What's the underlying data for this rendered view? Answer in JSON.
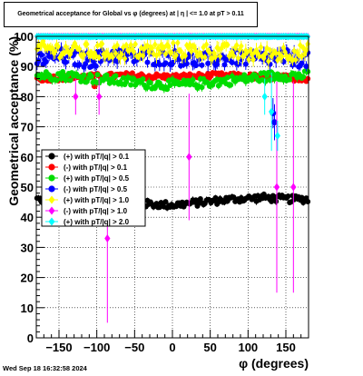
{
  "title": "Geometrical acceptance for Global vs φ (degrees) at | η | <= 1.0 at pT > 0.11",
  "footer": "Wed Sep 18 16:32:58 2024",
  "chart_data": {
    "type": "scatter",
    "xlabel": "φ (degrees)",
    "ylabel": "Geometrical acceptance (%)",
    "xlim": [
      -180,
      180
    ],
    "ylim": [
      0,
      100
    ],
    "x_ticks": [
      -150,
      -100,
      -50,
      0,
      50,
      100,
      150
    ],
    "y_ticks": [
      0,
      10,
      20,
      30,
      40,
      50,
      60,
      70,
      80,
      90,
      100
    ],
    "grid": true,
    "legend_position": "left-center",
    "series": [
      {
        "name": "(+) with pT/|q| > 0.1",
        "color": "#000000",
        "marker": "circle",
        "band": {
          "base": [
            [
              -180,
              46
            ],
            [
              -150,
              45
            ],
            [
              -120,
              44.5
            ],
            [
              -80,
              45
            ],
            [
              -40,
              44.5
            ],
            [
              0,
              44
            ],
            [
              40,
              45
            ],
            [
              80,
              46
            ],
            [
              120,
              46.5
            ],
            [
              150,
              46
            ],
            [
              180,
              46
            ]
          ],
          "spread": 1.2
        },
        "outliers": []
      },
      {
        "name": "(-) with pT/|q| > 0.1",
        "color": "#ff0000",
        "marker": "circle",
        "band": {
          "base": [
            [
              -180,
              86
            ],
            [
              -120,
              86.5
            ],
            [
              -60,
              87
            ],
            [
              0,
              86.5
            ],
            [
              60,
              87
            ],
            [
              120,
              86.5
            ],
            [
              180,
              86
            ]
          ],
          "spread": 1.0
        },
        "outliers": [
          {
            "x": -103,
            "y": 83.5,
            "err": 1
          }
        ]
      },
      {
        "name": "(+) with pT/|q| > 0.5",
        "color": "#00dd00",
        "marker": "circle",
        "band": {
          "base": [
            [
              -180,
              87
            ],
            [
              -140,
              87
            ],
            [
              -100,
              86
            ],
            [
              -60,
              85
            ],
            [
              -20,
              84
            ],
            [
              20,
              84
            ],
            [
              60,
              85
            ],
            [
              100,
              86
            ],
            [
              140,
              87
            ],
            [
              180,
              87
            ]
          ],
          "spread": 1.6
        },
        "outliers": []
      },
      {
        "name": "(-) with pT/|q| > 0.5",
        "color": "#0000ff",
        "marker": "circle",
        "band": {
          "base": [
            [
              -180,
              92
            ],
            [
              -150,
              93.5
            ],
            [
              -110,
              92
            ],
            [
              -80,
              94
            ],
            [
              -40,
              93
            ],
            [
              0,
              93
            ],
            [
              40,
              92
            ],
            [
              80,
              93
            ],
            [
              120,
              92.5
            ],
            [
              150,
              93
            ],
            [
              180,
              92
            ]
          ],
          "spread": 2.6
        },
        "outliers": [
          {
            "x": 135,
            "y": 71.5,
            "err": 6
          },
          {
            "x": 133,
            "y": 74.5,
            "err": 5
          }
        ]
      },
      {
        "name": "(+) with pT/|q| > 1.0",
        "color": "#ffff00",
        "marker": "diamond",
        "band": {
          "base": [
            [
              -180,
              96
            ],
            [
              -120,
              95
            ],
            [
              -60,
              95
            ],
            [
              0,
              95.5
            ],
            [
              60,
              95
            ],
            [
              120,
              94
            ],
            [
              180,
              95
            ]
          ],
          "spread": 2.6
        },
        "outliers": []
      },
      {
        "name": "(-) with pT/|q| > 1.0",
        "color": "#ff00ff",
        "marker": "diamond",
        "band": {
          "base": [
            [
              -180,
              100
            ],
            [
              180,
              100
            ]
          ],
          "spread": 0
        },
        "outliers": [
          {
            "x": -128,
            "y": 80,
            "err": 6
          },
          {
            "x": -97,
            "y": 80,
            "err": 6
          },
          {
            "x": -86,
            "y": 33,
            "err": 28
          },
          {
            "x": 22,
            "y": 60,
            "err": 21
          },
          {
            "x": 138,
            "y": 50,
            "err": 35
          },
          {
            "x": 160,
            "y": 50,
            "err": 35
          }
        ]
      },
      {
        "name": "(+) with pT/|q| > 2.0",
        "color": "#00ffff",
        "marker": "diamond",
        "band": {
          "base": [
            [
              -180,
              100
            ],
            [
              180,
              100
            ]
          ],
          "spread": 0.2
        },
        "outliers": [
          {
            "x": 122,
            "y": 80,
            "err": 6
          },
          {
            "x": 131,
            "y": 75,
            "err": 13
          },
          {
            "x": 139,
            "y": 67,
            "err": 5
          }
        ]
      }
    ]
  }
}
